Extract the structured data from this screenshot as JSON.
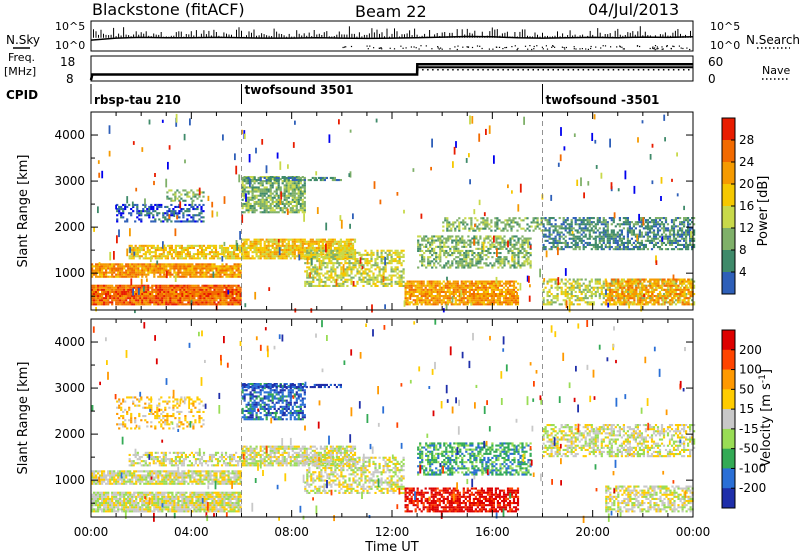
{
  "header": {
    "station": "Blackstone (fitACF)",
    "beam": "Beam 22",
    "date": "04/Jul/2013"
  },
  "panel_labels": {
    "nsky": "N.Sky",
    "nsearch": "N.Search",
    "freq_line1": "Freq.",
    "freq_line2": "[MHz]",
    "nave": "Nave",
    "cpid": "CPID"
  },
  "cpid_segments": [
    {
      "label": "rbsp-tau 210",
      "start_h": 0
    },
    {
      "label": "twofsound 3501",
      "start_h": 6
    },
    {
      "label": "twofsound -3501",
      "start_h": 18
    }
  ],
  "colors": {
    "power": [
      "#0000ee",
      "#2e5fb8",
      "#3f8a6a",
      "#7fb069",
      "#c8d94a",
      "#f5c800",
      "#f59a00",
      "#f26a00",
      "#e81c00"
    ],
    "velocity": [
      "#1f2faa",
      "#2a6fd6",
      "#33aa55",
      "#99dd55",
      "#c8c8c8",
      "#ffcc00",
      "#ff9900",
      "#ff4400",
      "#dd0000"
    ]
  },
  "chart_data": [
    {
      "type": "line",
      "name": "noise-sky-search",
      "ylabel_left": "N.Sky",
      "ylabel_right": "N.Search",
      "yticks_left": [
        "10^5",
        "10^0"
      ],
      "yticks_right": [
        "10^5",
        "10^0"
      ],
      "x_hours": [
        0,
        1,
        2,
        3,
        4,
        5,
        6,
        7,
        8,
        9,
        10,
        11,
        12,
        13,
        14,
        15,
        16,
        17,
        18,
        19,
        20,
        21,
        22,
        23,
        24
      ],
      "sky_level": [
        2.4,
        3.0,
        3.2,
        3.1,
        3.1,
        3.2,
        3.1,
        3.0,
        3.0,
        3.1,
        3.0,
        2.9,
        3.0,
        3.1,
        3.3,
        3.5,
        3.4,
        3.1,
        3.0,
        3.1,
        3.2,
        3.1,
        3.3,
        3.2,
        3.4
      ]
    },
    {
      "type": "line",
      "name": "frequency-nave",
      "ylabel_left": "Freq. [MHz]",
      "ylabel_right": "Nave",
      "yticks_left": [
        "18",
        "8"
      ],
      "yticks_right": [
        "60",
        "0"
      ],
      "x_hours": [
        0,
        0.05,
        6,
        6.01,
        13,
        13.01,
        24
      ],
      "freq_mhz": [
        8,
        10.5,
        10.5,
        10.5,
        10.5,
        15.2,
        15.2
      ],
      "freq_alt_mhz": [
        8,
        10.5,
        10.5,
        10.5,
        10.5,
        13.8,
        13.8
      ]
    },
    {
      "type": "heatmap",
      "name": "power",
      "ylabel": "Slant Range [km]",
      "colorbar_label": "Power [dB]",
      "colorbar_ticks": [
        "28",
        "24",
        "20",
        "16",
        "12",
        "8",
        "4"
      ],
      "yticks": [
        "1000",
        "2000",
        "3000",
        "4000"
      ],
      "ylim": [
        200,
        4500
      ],
      "xlim_hours": [
        0,
        24
      ],
      "regions": [
        {
          "t0": 0.0,
          "t1": 6.0,
          "r0": 300,
          "r1": 750,
          "level": 7,
          "density": 0.95
        },
        {
          "t0": 0.0,
          "t1": 6.0,
          "r0": 900,
          "r1": 1200,
          "level": 6,
          "density": 0.9
        },
        {
          "t0": 1.5,
          "t1": 6.0,
          "r0": 1300,
          "r1": 1600,
          "level": 5,
          "density": 0.75
        },
        {
          "t0": 1.0,
          "t1": 4.5,
          "r0": 2100,
          "r1": 2500,
          "level": 1,
          "density": 0.45
        },
        {
          "t0": 3.0,
          "t1": 4.5,
          "r0": 2550,
          "r1": 2800,
          "level": 3,
          "density": 0.5
        },
        {
          "t0": 6.0,
          "t1": 8.5,
          "r0": 2300,
          "r1": 3100,
          "level": 3,
          "density": 0.75
        },
        {
          "t0": 6.0,
          "t1": 10.5,
          "r0": 1300,
          "r1": 1750,
          "level": 5,
          "density": 0.85
        },
        {
          "t0": 8.5,
          "t1": 12.5,
          "r0": 700,
          "r1": 1500,
          "level": 4,
          "density": 0.6
        },
        {
          "t0": 12.5,
          "t1": 17.0,
          "r0": 300,
          "r1": 800,
          "level": 6,
          "density": 0.85
        },
        {
          "t0": 13.0,
          "t1": 17.5,
          "r0": 1100,
          "r1": 1800,
          "level": 3,
          "density": 0.55
        },
        {
          "t0": 14.0,
          "t1": 18.0,
          "r0": 1900,
          "r1": 2200,
          "level": 3,
          "density": 0.45
        },
        {
          "t0": 18.0,
          "t1": 24.0,
          "r0": 1500,
          "r1": 2200,
          "level": 2,
          "density": 0.6
        },
        {
          "t0": 18.0,
          "t1": 24.0,
          "r0": 300,
          "r1": 850,
          "level": 4,
          "density": 0.55
        },
        {
          "t0": 20.5,
          "t1": 24.0,
          "r0": 300,
          "r1": 850,
          "level": 6,
          "density": 0.6
        },
        {
          "t0": 6.0,
          "t1": 10.0,
          "r0": 3000,
          "r1": 3050,
          "level": 2,
          "density": 0.6
        }
      ]
    },
    {
      "type": "heatmap",
      "name": "velocity",
      "ylabel": "Slant Range [km]",
      "colorbar_label": "Velocity [m s-1]",
      "colorbar_ticks": [
        "200",
        "100",
        "50",
        "15",
        "-15",
        "-50",
        "-100",
        "-200"
      ],
      "yticks": [
        "1000",
        "2000",
        "3000",
        "4000"
      ],
      "ylim": [
        200,
        4500
      ],
      "xlabel": "Time UT",
      "xticks": [
        "00:00",
        "04:00",
        "08:00",
        "12:00",
        "16:00",
        "20:00",
        "00:00"
      ],
      "xlim_hours": [
        0,
        24
      ],
      "regions": [
        {
          "t0": 0.0,
          "t1": 6.0,
          "r0": 300,
          "r1": 750,
          "level": 4,
          "density": 0.9
        },
        {
          "t0": 0.0,
          "t1": 6.0,
          "r0": 900,
          "r1": 1200,
          "level": 4,
          "density": 0.85
        },
        {
          "t0": 1.5,
          "t1": 6.0,
          "r0": 1300,
          "r1": 1600,
          "level": 4,
          "density": 0.6
        },
        {
          "t0": 1.0,
          "t1": 4.5,
          "r0": 2100,
          "r1": 2800,
          "level": 5,
          "density": 0.3
        },
        {
          "t0": 6.0,
          "t1": 8.5,
          "r0": 2300,
          "r1": 3100,
          "level": 1,
          "density": 0.65
        },
        {
          "t0": 6.0,
          "t1": 10.5,
          "r0": 1300,
          "r1": 1750,
          "level": 4,
          "density": 0.75
        },
        {
          "t0": 8.5,
          "t1": 12.5,
          "r0": 700,
          "r1": 1500,
          "level": 4,
          "density": 0.55
        },
        {
          "t0": 12.5,
          "t1": 17.0,
          "r0": 300,
          "r1": 800,
          "level": 8,
          "density": 0.7
        },
        {
          "t0": 13.0,
          "t1": 17.5,
          "r0": 1100,
          "r1": 1800,
          "level": 2,
          "density": 0.55
        },
        {
          "t0": 18.0,
          "t1": 24.0,
          "r0": 1500,
          "r1": 2200,
          "level": 4,
          "density": 0.55
        },
        {
          "t0": 20.5,
          "t1": 24.0,
          "r0": 300,
          "r1": 850,
          "level": 4,
          "density": 0.6
        },
        {
          "t0": 6.0,
          "t1": 10.0,
          "r0": 3000,
          "r1": 3050,
          "level": 0,
          "density": 0.6
        }
      ]
    }
  ]
}
